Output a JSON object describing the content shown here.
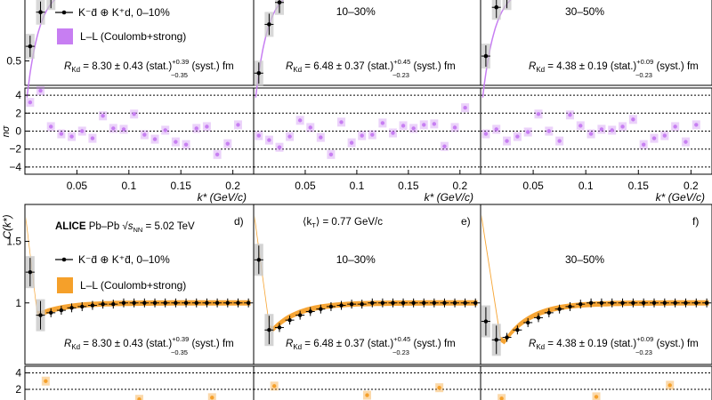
{
  "chart_data": [
    {
      "type": "scatter",
      "row": "top",
      "axis_label_y_resid": "nσ",
      "xlabel": "k* (GeV/c)",
      "xlim": [
        0,
        0.22
      ],
      "xticks": [
        "0.05",
        "0.1",
        "0.15",
        "0.2"
      ],
      "ylim_main": [
        0.4,
        0.75
      ],
      "yticks_main": [
        "0.5"
      ],
      "ylim_resid": [
        -4.8,
        4.8
      ],
      "yticks_resid": [
        "4",
        "2",
        "0",
        "−2",
        "−4"
      ],
      "legend": {
        "data_label": "K⁻d̄ ⊕ K⁺d, 0–10%",
        "model_label": "L–L (Coulomb+strong)"
      },
      "colors": {
        "model": "#c77ef2",
        "data": "#000000",
        "syst_box": "#c8c8c8"
      },
      "panels": [
        {
          "centrality": "",
          "radius_text": {
            "main": "R",
            "sub": "Kd",
            "value": " = 8.30 ± 0.43 (stat.)",
            "sup": "+0.39",
            "subv": "−0.35",
            "tail": "(syst.) fm"
          },
          "data": [
            [
              0.005,
              0.56
            ],
            [
              0.015,
              0.7
            ],
            [
              0.025,
              0.76
            ]
          ],
          "nsigma": [
            3.2,
            4.5,
            0.5,
            -0.3,
            -0.6,
            0.0,
            -0.8,
            1.7,
            0.3,
            0.2,
            1.9,
            -0.4,
            -0.9,
            0.1,
            -1.2,
            -1.5,
            0.3,
            0.5,
            -2.6,
            -1.4,
            0.7
          ]
        },
        {
          "centrality": "10–30%",
          "radius_text": {
            "main": "R",
            "sub": "Kd",
            "value": " = 6.48 ± 0.37 (stat.)",
            "sup": "+0.45",
            "subv": "−0.23",
            "tail": "(syst.) fm"
          },
          "data": [
            [
              0.005,
              0.45
            ],
            [
              0.015,
              0.65
            ],
            [
              0.025,
              0.74
            ]
          ],
          "nsigma": [
            -0.5,
            -1.0,
            -1.8,
            -0.6,
            1.2,
            0.4,
            -0.7,
            -2.6,
            1.0,
            -1.3,
            -0.5,
            -0.4,
            0.9,
            -0.2,
            0.6,
            0.3,
            0.7,
            0.8,
            -1.7,
            0.4,
            2.6
          ]
        },
        {
          "centrality": "30–50%",
          "radius_text": {
            "main": "R",
            "sub": "Kd",
            "value": " = 4.38 ± 0.19 (stat.)",
            "sup": "+0.09",
            "subv": "−0.23",
            "tail": "(syst.) fm"
          },
          "data": [
            [
              0.005,
              0.52
            ],
            [
              0.015,
              0.72
            ],
            [
              0.025,
              0.76
            ]
          ],
          "nsigma": [
            -0.3,
            0.2,
            -1.1,
            -0.6,
            -0.1,
            1.9,
            0.0,
            -1.1,
            1.8,
            0.6,
            -0.3,
            0.2,
            0.1,
            0.5,
            1.3,
            -1.5,
            -0.8,
            -0.5,
            0.5,
            -1.2,
            0.7
          ]
        }
      ]
    },
    {
      "type": "line",
      "row": "bottom",
      "ylabel": "C(k*)",
      "xlim": [
        0,
        0.22
      ],
      "ylim_main": [
        0.5,
        1.8
      ],
      "yticks_main": [
        "1",
        "1.5"
      ],
      "ylim_resid": [
        0.5,
        4.8
      ],
      "yticks_resid": [
        "4",
        "2"
      ],
      "header": {
        "experiment": "ALICE",
        "system": "Pb–Pb",
        "energy_symbol": "s",
        "energy_sub": "NN",
        "energy_value": "= 5.02 TeV",
        "kt_text": "⟨k",
        "kt_sub": "T",
        "kt_value": "⟩ = 0.77 GeV/c"
      },
      "legend": {
        "data_label": "K⁻d̄ ⊕ K⁺d̄, 0–10%",
        "model_label": "L–L (Coulomb+strong)"
      },
      "colors": {
        "model": "#f5a02a",
        "data": "#000000",
        "syst_box": "#c8c8c8"
      },
      "panels": [
        {
          "letter": "d)",
          "centrality": "",
          "radius_text": {
            "main": "R",
            "sub": "Kd",
            "value": " = 8.30 ± 0.43 (stat.)",
            "sup": "+0.39",
            "subv": "−0.35",
            "tail": "(syst.) fm"
          },
          "data": [
            [
              0.005,
              1.25
            ],
            [
              0.015,
              0.9
            ],
            [
              0.025,
              0.92
            ],
            [
              0.035,
              0.94
            ],
            [
              0.045,
              0.96
            ],
            [
              0.055,
              0.97
            ],
            [
              0.065,
              0.98
            ],
            [
              0.075,
              0.99
            ],
            [
              0.085,
              0.99
            ],
            [
              0.095,
              1.0
            ],
            [
              0.105,
              1.0
            ],
            [
              0.115,
              1.0
            ],
            [
              0.125,
              1.0
            ],
            [
              0.135,
              1.0
            ],
            [
              0.145,
              1.0
            ],
            [
              0.155,
              1.0
            ],
            [
              0.165,
              1.0
            ],
            [
              0.175,
              1.0
            ],
            [
              0.185,
              1.0
            ],
            [
              0.195,
              1.0
            ],
            [
              0.205,
              1.0
            ],
            [
              0.215,
              1.0
            ]
          ],
          "nsigma": [
            3.0,
            0.8,
            1.0
          ]
        },
        {
          "letter": "e)",
          "centrality": "10–30%",
          "radius_text": {
            "main": "R",
            "sub": "Kd",
            "value": " = 6.48 ± 0.37 (stat.)",
            "sup": "+0.45",
            "subv": "−0.23",
            "tail": "(syst.) fm"
          },
          "data": [
            [
              0.005,
              1.35
            ],
            [
              0.015,
              0.78
            ],
            [
              0.025,
              0.8
            ],
            [
              0.035,
              0.86
            ],
            [
              0.045,
              0.9
            ],
            [
              0.055,
              0.93
            ],
            [
              0.065,
              0.95
            ],
            [
              0.075,
              0.97
            ],
            [
              0.085,
              0.98
            ],
            [
              0.095,
              0.99
            ],
            [
              0.105,
              0.99
            ],
            [
              0.115,
              1.0
            ],
            [
              0.125,
              1.0
            ],
            [
              0.135,
              1.0
            ],
            [
              0.145,
              1.0
            ],
            [
              0.155,
              1.0
            ],
            [
              0.165,
              1.0
            ],
            [
              0.175,
              1.0
            ],
            [
              0.185,
              1.0
            ],
            [
              0.195,
              1.0
            ],
            [
              0.205,
              1.0
            ],
            [
              0.215,
              1.0
            ]
          ],
          "nsigma": [
            2.4,
            1.3,
            2.2
          ]
        },
        {
          "letter": "f)",
          "centrality": "30–50%",
          "radius_text": {
            "main": "R",
            "sub": "Kd",
            "value": " = 4.38 ± 0.19 (stat.)",
            "sup": "+0.09",
            "subv": "−0.23",
            "tail": "(syst.) fm"
          },
          "data": [
            [
              0.005,
              0.85
            ],
            [
              0.015,
              0.7
            ],
            [
              0.025,
              0.72
            ],
            [
              0.035,
              0.78
            ],
            [
              0.045,
              0.84
            ],
            [
              0.055,
              0.88
            ],
            [
              0.065,
              0.92
            ],
            [
              0.075,
              0.95
            ],
            [
              0.085,
              0.97
            ],
            [
              0.095,
              0.99
            ],
            [
              0.105,
              1.0
            ],
            [
              0.115,
              1.0
            ],
            [
              0.125,
              1.0
            ],
            [
              0.135,
              1.0
            ],
            [
              0.145,
              1.0
            ],
            [
              0.155,
              1.0
            ],
            [
              0.165,
              1.0
            ],
            [
              0.175,
              1.0
            ],
            [
              0.185,
              1.0
            ],
            [
              0.195,
              1.0
            ],
            [
              0.205,
              1.0
            ],
            [
              0.215,
              1.0
            ]
          ],
          "nsigma": [
            0.9,
            1.1,
            2.5
          ]
        }
      ]
    }
  ]
}
